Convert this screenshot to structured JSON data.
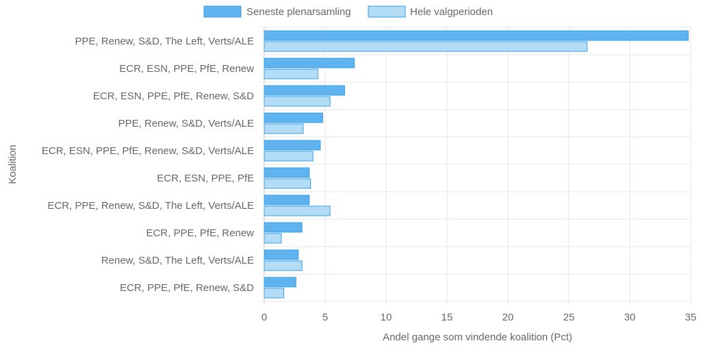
{
  "chart_data": {
    "type": "bar",
    "orientation": "horizontal",
    "title": "",
    "xlabel": "Andel gange som vindende koalition (Pct)",
    "ylabel": "Koalition",
    "xlim": [
      0,
      35
    ],
    "xticks": [
      0,
      5,
      10,
      15,
      20,
      25,
      30,
      35
    ],
    "grid": true,
    "legend_position": "top-center",
    "categories": [
      "PPE, Renew, S&D, The Left, Verts/ALE",
      "ECR, ESN, PPE, PfE, Renew",
      "ECR, ESN, PPE, PfE, Renew, S&D",
      "PPE, Renew, S&D, Verts/ALE",
      "ECR, ESN, PPE, PfE, Renew, S&D, Verts/ALE",
      "ECR, ESN, PPE, PfE",
      "ECR, PPE, Renew, S&D, The Left, Verts/ALE",
      "ECR, PPE, PfE, Renew",
      "Renew, S&D, The Left, Verts/ALE",
      "ECR, PPE, PfE, Renew, S&D"
    ],
    "series": [
      {
        "name": "Seneste plenarsamling",
        "color": "#5fb4ef",
        "border": "#3a9ee6",
        "values": [
          34.8,
          7.4,
          6.6,
          4.8,
          4.6,
          3.7,
          3.7,
          3.1,
          2.8,
          2.6
        ]
      },
      {
        "name": "Hele valgperioden",
        "color": "#b3dcf7",
        "border": "#3a9ee6",
        "values": [
          26.5,
          4.4,
          5.4,
          3.2,
          4.0,
          3.8,
          5.4,
          1.4,
          3.1,
          1.6
        ]
      }
    ]
  }
}
